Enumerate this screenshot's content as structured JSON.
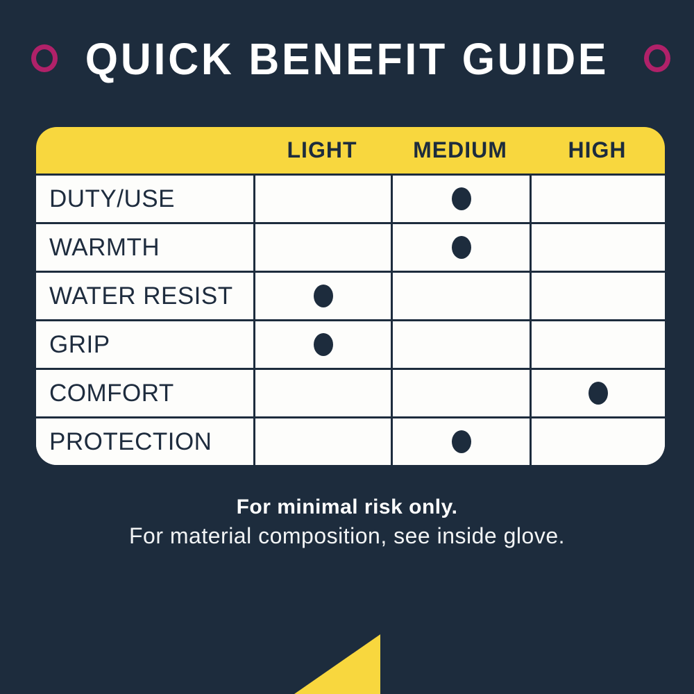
{
  "title": "QUICK BENEFIT GUIDE",
  "icons": {
    "left_ring": "ring-icon",
    "right_ring": "ring-icon",
    "level_marker": "dot-icon",
    "corner_shape": "triangle-icon"
  },
  "colors": {
    "background_navy": "#1d2c3d",
    "accent_yellow": "#f8d73e",
    "accent_magenta": "#b02169",
    "cell_white": "#fdfdfb",
    "text_white": "#ffffff",
    "text_navy": "#1e2c3e"
  },
  "table": {
    "columns": [
      "LIGHT",
      "MEDIUM",
      "HIGH"
    ],
    "rows": [
      {
        "label": "DUTY/USE",
        "level": "MEDIUM"
      },
      {
        "label": "WARMTH",
        "level": "MEDIUM"
      },
      {
        "label": "WATER RESIST",
        "level": "LIGHT"
      },
      {
        "label": "GRIP",
        "level": "LIGHT"
      },
      {
        "label": "COMFORT",
        "level": "HIGH"
      },
      {
        "label": "PROTECTION",
        "level": "MEDIUM"
      }
    ]
  },
  "footer": {
    "bold_line": "For minimal risk only.",
    "regular_line": "For material composition, see inside glove."
  },
  "chart_data": {
    "type": "table",
    "title": "QUICK BENEFIT GUIDE",
    "columns": [
      "LIGHT",
      "MEDIUM",
      "HIGH"
    ],
    "rows": [
      "DUTY/USE",
      "WARMTH",
      "WATER RESIST",
      "GRIP",
      "COMFORT",
      "PROTECTION"
    ],
    "values": {
      "DUTY/USE": "MEDIUM",
      "WARMTH": "MEDIUM",
      "WATER RESIST": "LIGHT",
      "GRIP": "LIGHT",
      "COMFORT": "HIGH",
      "PROTECTION": "MEDIUM"
    },
    "legend_position": "none",
    "grid": "on"
  }
}
